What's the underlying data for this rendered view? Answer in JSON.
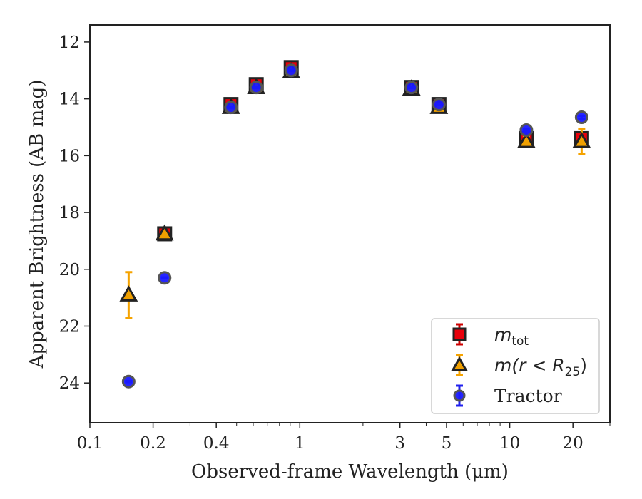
{
  "chart_data": {
    "type": "scatter",
    "title": "",
    "xlabel": "Observed-frame Wavelength (μm)",
    "ylabel": "Apparent Brightness (AB mag)",
    "xscale": "log",
    "xlim": [
      0.1,
      30
    ],
    "ylim": [
      25.4,
      11.4
    ],
    "y_inverted": true,
    "xticks": [
      0.1,
      0.2,
      0.4,
      1,
      3,
      5,
      10,
      20
    ],
    "xtick_labels": [
      "0.1",
      "0.2",
      "0.4",
      "1",
      "3",
      "5",
      "10",
      "20"
    ],
    "yticks": [
      12,
      14,
      16,
      18,
      20,
      22,
      24
    ],
    "ytick_labels": [
      "12",
      "14",
      "16",
      "18",
      "20",
      "22",
      "24"
    ],
    "grid": false,
    "legend_position": "bottom-right",
    "series": [
      {
        "name": "m_tot",
        "marker": "square",
        "color": "#e8000b",
        "edge_color": "#222222",
        "error_color": "#cc0000",
        "x": [
          0.227,
          0.47,
          0.62,
          0.91,
          3.4,
          4.6,
          12.0,
          22.0
        ],
        "y": [
          18.75,
          14.2,
          13.5,
          12.9,
          13.6,
          14.2,
          15.4,
          15.4
        ],
        "yerr": [
          0.1,
          0.1,
          0.1,
          0.1,
          0.05,
          0.05,
          0.15,
          0.2
        ]
      },
      {
        "name": "m(r < R25)",
        "marker": "triangle",
        "color": "#f0a000",
        "edge_color": "#222222",
        "error_color": "#f5a300",
        "x": [
          0.153,
          0.227,
          0.47,
          0.62,
          0.91,
          3.4,
          4.6,
          12.0,
          22.0
        ],
        "y": [
          20.9,
          18.75,
          14.3,
          13.6,
          13.05,
          13.65,
          14.3,
          15.5,
          15.5
        ],
        "yerr": [
          0.8,
          0.1,
          0.1,
          0.1,
          0.1,
          0.05,
          0.1,
          0.2,
          0.45
        ]
      },
      {
        "name": "Tractor",
        "marker": "circle",
        "color": "#1a1aff",
        "edge_color": "#555555",
        "error_color": "#2020ee",
        "x": [
          0.153,
          0.227,
          0.47,
          0.62,
          0.91,
          3.4,
          4.6,
          12.0,
          22.0
        ],
        "y": [
          23.95,
          20.3,
          14.3,
          13.6,
          13.0,
          13.6,
          14.2,
          15.1,
          14.65
        ],
        "yerr": [
          0.02,
          0.02,
          0.02,
          0.02,
          0.02,
          0.02,
          0.02,
          0.05,
          0.05
        ]
      }
    ],
    "legend": {
      "entries": [
        {
          "series": 0,
          "base": "m",
          "sub": "tot",
          "paren": ""
        },
        {
          "series": 1,
          "base": "m",
          "sub": "25",
          "paren": "(r < R"
        },
        {
          "series": 2,
          "text": "Tractor"
        }
      ]
    }
  }
}
